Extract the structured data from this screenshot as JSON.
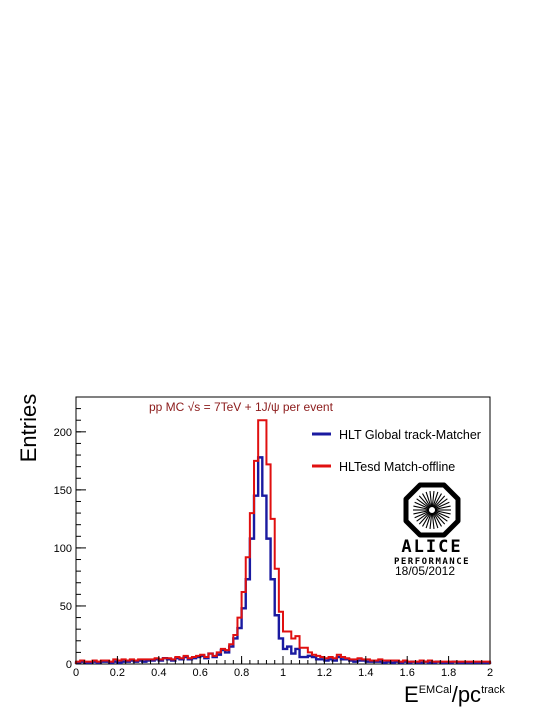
{
  "chart_data": {
    "type": "histogram",
    "xlabel_base": "E",
    "xlabel_sup1": "EMCal",
    "xlabel_mid": "/pc",
    "xlabel_sup2": "track",
    "ylabel": "Entries",
    "xlim": [
      0,
      2
    ],
    "ylim": [
      0,
      230
    ],
    "x_ticks": [
      "0",
      "0.2",
      "0.4",
      "0.6",
      "0.8",
      "1",
      "1.2",
      "1.4",
      "1.6",
      "1.8",
      "2"
    ],
    "x_tick_values": [
      0,
      0.2,
      0.4,
      0.6,
      0.8,
      1.0,
      1.2,
      1.4,
      1.6,
      1.8,
      2.0
    ],
    "y_ticks": [
      "0",
      "50",
      "100",
      "150",
      "200"
    ],
    "y_tick_values": [
      0,
      50,
      100,
      150,
      200
    ],
    "bin_width": 0.02,
    "annotation": "pp MC √s = 7TeV + 1J/ψ per event",
    "series": [
      {
        "name": "HLT Global track-Matcher",
        "color": "#1a1aa0",
        "values": [
          1,
          2,
          1,
          1,
          2,
          1,
          2,
          2,
          1,
          2,
          1,
          2,
          2,
          3,
          2,
          3,
          2,
          3,
          3,
          4,
          3,
          5,
          4,
          3,
          5,
          4,
          6,
          4,
          5,
          6,
          7,
          5,
          9,
          6,
          8,
          12,
          10,
          15,
          22,
          31,
          48,
          73,
          108,
          145,
          178,
          145,
          108,
          73,
          42,
          22,
          13,
          15,
          9,
          13,
          6,
          6,
          7,
          6,
          4,
          4,
          3,
          4,
          3,
          6,
          4,
          4,
          3,
          2,
          3,
          3,
          2,
          2,
          2,
          2,
          1,
          2,
          1,
          2,
          1,
          2,
          1,
          2,
          1,
          1,
          2,
          1,
          1,
          2,
          1,
          1,
          1,
          2,
          1,
          1,
          1,
          1,
          1,
          1,
          1,
          1
        ]
      },
      {
        "name": "HLTesd Match-offline",
        "color": "#e01010",
        "values": [
          2,
          3,
          2,
          2,
          3,
          2,
          3,
          3,
          2,
          4,
          3,
          4,
          3,
          4,
          3,
          4,
          4,
          4,
          4,
          5,
          4,
          5,
          5,
          4,
          6,
          5,
          7,
          5,
          6,
          7,
          8,
          6,
          9,
          7,
          10,
          13,
          12,
          17,
          25,
          40,
          62,
          92,
          130,
          175,
          210,
          210,
          172,
          125,
          82,
          45,
          28,
          28,
          22,
          24,
          14,
          14,
          10,
          8,
          7,
          6,
          5,
          6,
          5,
          8,
          6,
          5,
          4,
          4,
          5,
          4,
          4,
          3,
          3,
          4,
          3,
          3,
          3,
          3,
          2,
          3,
          2,
          2,
          2,
          3,
          2,
          3,
          2,
          2,
          2,
          2,
          2,
          2,
          2,
          2,
          2,
          2,
          2,
          2,
          2,
          2
        ]
      }
    ],
    "legend_position": "top-right"
  },
  "logo": {
    "name": "ALICE",
    "subtitle": "PERFORMANCE",
    "date": "18/05/2012"
  }
}
